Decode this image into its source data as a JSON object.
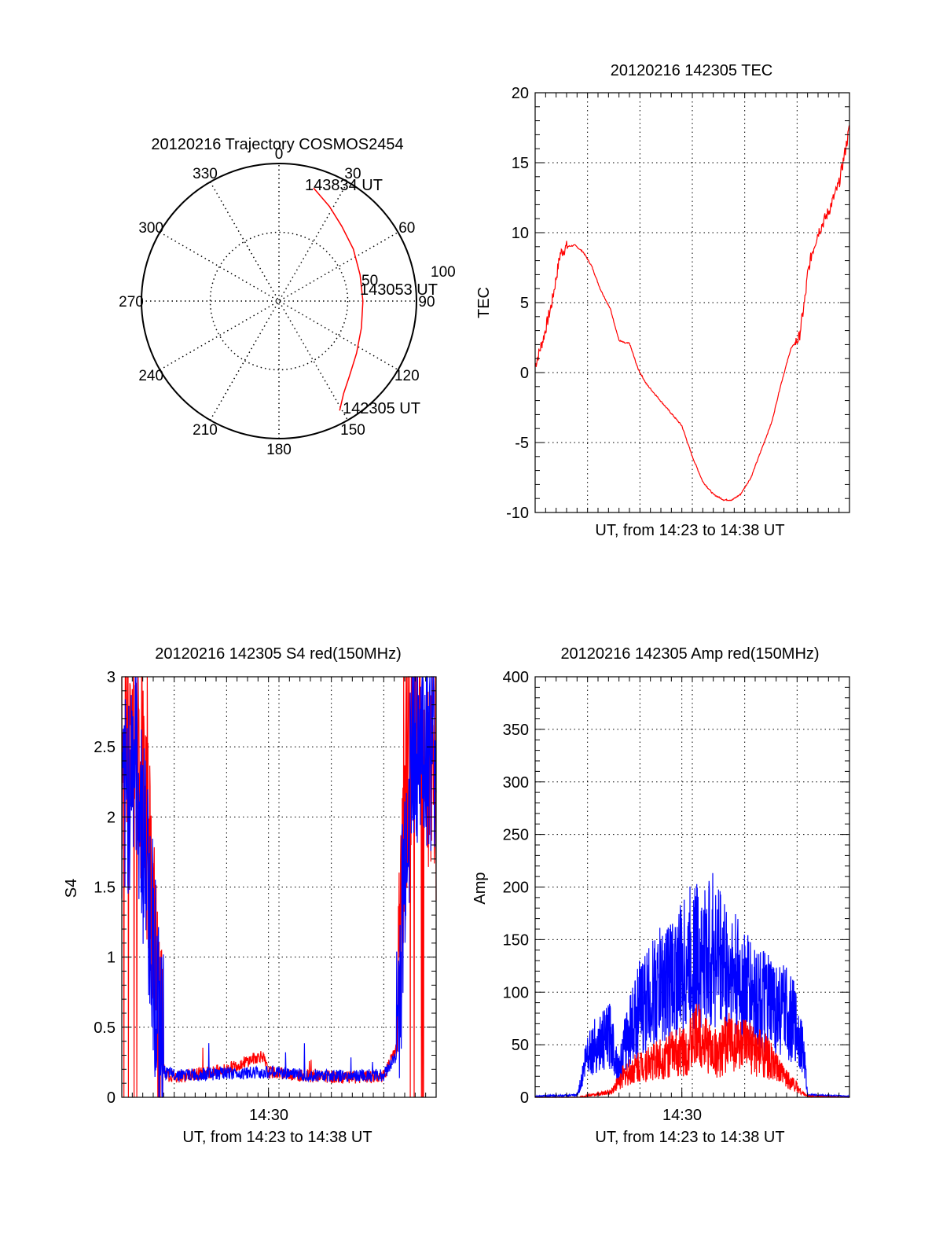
{
  "chart_data": [
    {
      "type": "polar",
      "title": "20120216 Trajectory COSMOS2454",
      "angle_ticks": [
        "0",
        "30",
        "60",
        "90",
        "120",
        "150",
        "180",
        "210",
        "240",
        "270",
        "300",
        "330"
      ],
      "radius_tick_labels": [
        "50",
        "100"
      ],
      "rlim": [
        0,
        100
      ],
      "series": [
        {
          "color": "#ff0000",
          "points": [
            {
              "az": 17,
              "r": 86
            },
            {
              "az": 28,
              "r": 78
            },
            {
              "az": 40,
              "r": 71
            },
            {
              "az": 55,
              "r": 66
            },
            {
              "az": 72,
              "r": 62
            },
            {
              "az": 90,
              "r": 61
            },
            {
              "az": 108,
              "r": 63
            },
            {
              "az": 124,
              "r": 68
            },
            {
              "az": 137,
              "r": 75
            },
            {
              "az": 145,
              "r": 82
            },
            {
              "az": 151,
              "r": 91
            }
          ]
        }
      ],
      "annotations": [
        "143834 UT",
        "143053 UT",
        "142305 UT"
      ]
    },
    {
      "type": "line",
      "title": "20120216 142305 TEC",
      "xlabel": "UT, from 14:23 to 14:38 UT",
      "ylabel": "TEC",
      "xlim": [
        0,
        15
      ],
      "ylim": [
        -10,
        20
      ],
      "yticks": [
        "-10",
        "-5",
        "0",
        "5",
        "10",
        "15",
        "20"
      ],
      "grid": true,
      "series": [
        {
          "color": "#ff0000",
          "x": [
            0,
            0.4,
            0.8,
            1.2,
            1.5,
            1.9,
            2.3,
            2.7,
            3.1,
            3.6,
            4.0,
            4.3,
            4.5,
            4.9,
            5.3,
            6.2,
            7.0,
            7.5,
            8.0,
            8.5,
            9.0,
            9.4,
            9.8,
            10.3,
            10.8,
            11.3,
            11.7,
            12.2,
            12.6,
            12.9,
            13.0,
            13.2,
            13.5,
            14.0,
            14.5,
            15.0
          ],
          "y": [
            0.5,
            2.5,
            5,
            8.5,
            9,
            9.1,
            8.6,
            7.6,
            6,
            4.5,
            2.3,
            2.1,
            2.1,
            0.3,
            -0.8,
            -2.4,
            -3.8,
            -6,
            -7.8,
            -8.7,
            -9.1,
            -9.1,
            -8.7,
            -7.5,
            -5.5,
            -3.5,
            -1,
            1.7,
            2.5,
            5.5,
            7,
            8.5,
            10,
            11.5,
            13.5,
            17.5
          ]
        }
      ]
    },
    {
      "type": "line",
      "title": "20120216 142305 S4 red(150MHz)",
      "xlabel": "UT, from 14:23 to 14:38 UT",
      "ylabel": "S4",
      "xlim": [
        0,
        15
      ],
      "ylim": [
        0,
        3
      ],
      "xtick_label": "14:30",
      "yticks": [
        "0",
        "0.5",
        "1",
        "1.5",
        "2",
        "2.5",
        "3"
      ],
      "grid": true,
      "series": [
        {
          "color": "#0000ff",
          "x": [
            0,
            0.6,
            1.2,
            1.6,
            1.8,
            2.1,
            3,
            5,
            7,
            9,
            11,
            12.5,
            13.1,
            13.3,
            13.6,
            14,
            15
          ],
          "y": [
            1.9,
            2.5,
            1.6,
            0.9,
            0.3,
            0.17,
            0.16,
            0.17,
            0.18,
            0.16,
            0.15,
            0.16,
            0.3,
            0.9,
            2.0,
            2.6,
            2.4
          ]
        },
        {
          "color": "#ff0000",
          "x": [
            0,
            0.6,
            1.2,
            1.6,
            1.8,
            2.1,
            3,
            5,
            6.7,
            7,
            9,
            11,
            12.5,
            13.1,
            13.3,
            13.6,
            14,
            15
          ],
          "y": [
            2.3,
            2.8,
            1.9,
            1.0,
            0.35,
            0.15,
            0.15,
            0.2,
            0.3,
            0.18,
            0.15,
            0.14,
            0.15,
            0.35,
            1.2,
            2.2,
            2.8,
            2.0
          ]
        }
      ]
    },
    {
      "type": "line",
      "title": "20120216 142305 Amp red(150MHz)",
      "xlabel": "UT, from 14:23 to 14:38 UT",
      "ylabel": "Amp",
      "xlim": [
        0,
        15
      ],
      "ylim": [
        0,
        400
      ],
      "xtick_label": "14:30",
      "yticks": [
        "0",
        "50",
        "100",
        "150",
        "200",
        "250",
        "300",
        "350",
        "400"
      ],
      "grid": true,
      "series": [
        {
          "color": "#0000ff",
          "x": [
            0,
            2,
            2.2,
            2.5,
            3.0,
            3.4,
            3.6,
            4.0,
            4.4,
            5.0,
            5.7,
            6.3,
            7.0,
            7.6,
            8.0,
            8.6,
            9.2,
            9.7,
            10.3,
            10.9,
            11.5,
            12.0,
            12.4,
            12.8,
            13.0,
            15
          ],
          "y": [
            1,
            2,
            15,
            45,
            50,
            55,
            60,
            25,
            60,
            85,
            100,
            110,
            120,
            135,
            130,
            140,
            120,
            110,
            100,
            90,
            85,
            80,
            70,
            45,
            2,
            1
          ]
        },
        {
          "color": "#ff0000",
          "x": [
            0,
            2,
            3,
            3.6,
            4.2,
            5.0,
            5.8,
            6.4,
            7.2,
            7.8,
            8.4,
            8.8,
            9.2,
            9.8,
            10.4,
            11.0,
            11.6,
            12.0,
            12.4,
            12.7,
            13.0,
            15
          ],
          "y": [
            0,
            0,
            3,
            5,
            20,
            30,
            35,
            40,
            45,
            60,
            45,
            40,
            55,
            50,
            45,
            40,
            25,
            18,
            12,
            5,
            1,
            0
          ]
        }
      ]
    }
  ]
}
